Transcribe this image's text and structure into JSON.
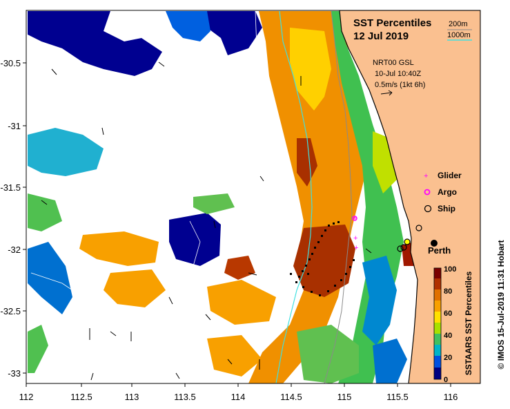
{
  "title": {
    "line1": "SST Percentiles",
    "line2": "12 Jul 2019"
  },
  "isobath_legend": {
    "shallow": "200m",
    "deep": "1000m",
    "shallow_color": "#8a8a8a",
    "deep_color": "#40e0e0"
  },
  "current_legend": {
    "source": "NRT00 GSL",
    "time": "10-Jul 10:40Z",
    "scale": "0.5m/s (1kt 6h)"
  },
  "platform_legend": [
    {
      "label": "Glider",
      "symbol": "+",
      "color": "#ff00ff"
    },
    {
      "label": "Argo",
      "symbol": "*",
      "color": "#ff00ff"
    },
    {
      "label": "Ship",
      "symbol": "o",
      "color": "#000000"
    }
  ],
  "city": {
    "label": "Perth",
    "lon": 115.86,
    "lat": -31.95
  },
  "colorbar": {
    "title": "SSTAARS SST Percentiles",
    "ticks": [
      "0",
      "20",
      "40",
      "60",
      "80",
      "100"
    ],
    "colors": [
      "#000080",
      "#0050e0",
      "#00b4c8",
      "#40c060",
      "#a8e000",
      "#ffe000",
      "#f8a000",
      "#e07000",
      "#b03000",
      "#7a0000"
    ]
  },
  "credit": "© IMOS 15-Jul-2019 11:31 Hobart",
  "axes": {
    "x_ticks": [
      "112",
      "112.5",
      "113",
      "113.5",
      "114",
      "114.5",
      "115",
      "115.5",
      "116"
    ],
    "y_ticks": [
      "-30.5",
      "-31",
      "-31.5",
      "-32",
      "-32.5",
      "-33"
    ],
    "lon_range": [
      112,
      116.3
    ],
    "lat_range": [
      -33.1,
      -30.1
    ]
  },
  "colors": {
    "land": "#fac090",
    "coast": "#000000",
    "missing": "#ffffff"
  }
}
